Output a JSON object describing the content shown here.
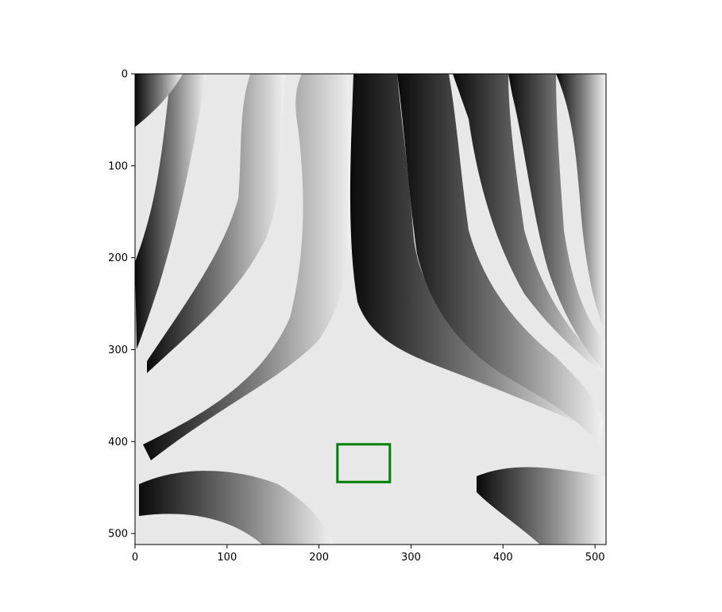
{
  "chart_data": {
    "type": "heatmap",
    "colormap": "gray",
    "description_of_pattern": [],
    "title": "",
    "xlabel": "",
    "ylabel": "",
    "xlim": [
      0,
      512
    ],
    "ylim": [
      512,
      0
    ],
    "xticks": [
      0,
      100,
      200,
      300,
      400,
      500
    ],
    "yticks": [
      0,
      100,
      200,
      300,
      400,
      500
    ],
    "xtick_labels": [
      "0",
      "100",
      "200",
      "300",
      "400",
      "500"
    ],
    "ytick_labels": [
      "0",
      "100",
      "200",
      "300",
      "400",
      "500"
    ],
    "grid": false,
    "annotations": [
      {
        "type": "rectangle",
        "color": "#008000",
        "x0": 220,
        "y0": 403,
        "x1": 277,
        "y1": 444
      }
    ]
  }
}
